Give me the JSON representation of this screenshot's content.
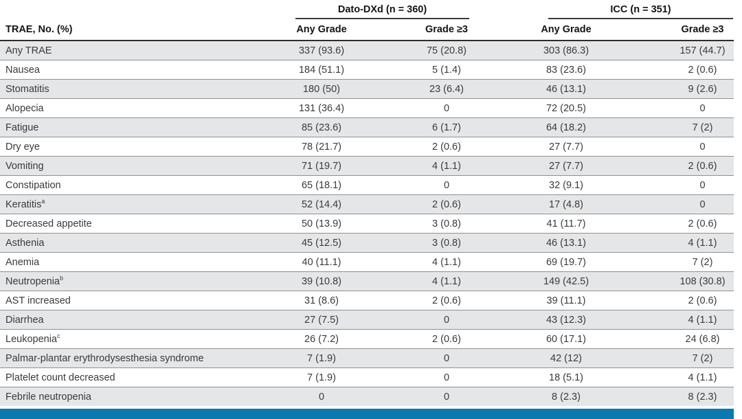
{
  "table": {
    "corner_header": "TRAE, No. (%)",
    "groups": [
      {
        "label": "Dato-DXd (n = 360)"
      },
      {
        "label": "ICC (n = 351)"
      }
    ],
    "columns": [
      "Any Grade",
      "Grade ≥3",
      "Any Grade",
      "Grade ≥3"
    ],
    "rows": [
      {
        "label": "Any TRAE",
        "values": [
          "337 (93.6)",
          "75 (20.8)",
          "303 (86.3)",
          "157 (44.7)"
        ]
      },
      {
        "label": "Nausea",
        "values": [
          "184 (51.1)",
          "5 (1.4)",
          "83 (23.6)",
          "2 (0.6)"
        ]
      },
      {
        "label": "Stomatitis",
        "values": [
          "180 (50)",
          "23 (6.4)",
          "46 (13.1)",
          "9 (2.6)"
        ]
      },
      {
        "label": "Alopecia",
        "values": [
          "131 (36.4)",
          "0",
          "72 (20.5)",
          "0"
        ]
      },
      {
        "label": "Fatigue",
        "values": [
          "85 (23.6)",
          "6 (1.7)",
          "64 (18.2)",
          "7 (2)"
        ]
      },
      {
        "label": "Dry eye",
        "values": [
          "78 (21.7)",
          "2 (0.6)",
          "27 (7.7)",
          "0"
        ]
      },
      {
        "label": "Vomiting",
        "values": [
          "71 (19.7)",
          "4 (1.1)",
          "27 (7.7)",
          "2 (0.6)"
        ]
      },
      {
        "label": "Constipation",
        "values": [
          "65 (18.1)",
          "0",
          "32 (9.1)",
          "0"
        ]
      },
      {
        "label": "Keratitis",
        "sup": "a",
        "values": [
          "52 (14.4)",
          "2 (0.6)",
          "17 (4.8)",
          "0"
        ]
      },
      {
        "label": "Decreased appetite",
        "values": [
          "50 (13.9)",
          "3 (0.8)",
          "41 (11.7)",
          "2 (0.6)"
        ]
      },
      {
        "label": "Asthenia",
        "values": [
          "45 (12.5)",
          "3 (0.8)",
          "46 (13.1)",
          "4 (1.1)"
        ]
      },
      {
        "label": "Anemia",
        "values": [
          "40 (11.1)",
          "4 (1.1)",
          "69 (19.7)",
          "7 (2)"
        ]
      },
      {
        "label": "Neutropenia",
        "sup": "b",
        "values": [
          "39 (10.8)",
          "4 (1.1)",
          "149 (42.5)",
          "108 (30.8)"
        ]
      },
      {
        "label": "AST increased",
        "values": [
          "31 (8.6)",
          "2 (0.6)",
          "39 (11.1)",
          "2 (0.6)"
        ]
      },
      {
        "label": "Diarrhea",
        "values": [
          "27 (7.5)",
          "0",
          "43 (12.3)",
          "4 (1.1)"
        ]
      },
      {
        "label": "Leukopenia",
        "sup": "c",
        "values": [
          "26 (7.2)",
          "2 (0.6)",
          "60 (17.1)",
          "24 (6.8)"
        ]
      },
      {
        "label": "Palmar-plantar erythrodysesthesia syndrome",
        "values": [
          "7 (1.9)",
          "0",
          "42 (12)",
          "7 (2)"
        ]
      },
      {
        "label": "Platelet count decreased",
        "values": [
          "7 (1.9)",
          "0",
          "18 (5.1)",
          "4 (1.1)"
        ]
      },
      {
        "label": "Febrile neutropenia",
        "values": [
          "0",
          "0",
          "8 (2.3)",
          "8 (2.3)"
        ]
      }
    ],
    "colors": {
      "accent_bar": "#0b79ad",
      "row_shade": "#e5e6e8"
    }
  }
}
